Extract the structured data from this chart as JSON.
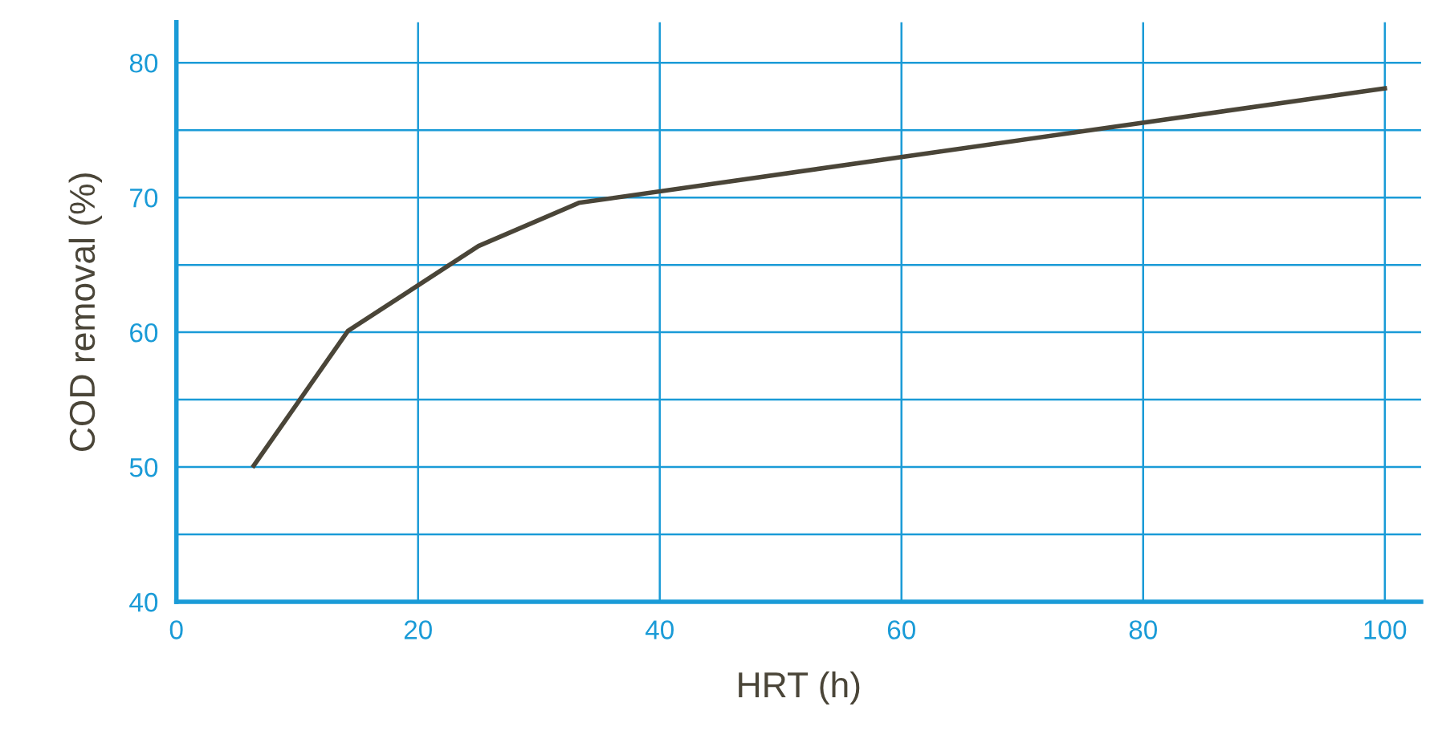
{
  "chart_data": {
    "type": "line",
    "xlabel": "HRT (h)",
    "ylabel": "COD removal (%)",
    "series": [
      {
        "color": "#4a4538",
        "x": [
          6.4,
          14.2,
          25.0,
          33.3,
          100
        ],
        "values": [
          50.1,
          60.1,
          66.4,
          69.6,
          78.1
        ]
      }
    ],
    "xlim": [
      0,
      103
    ],
    "ylim": [
      40,
      83
    ],
    "xticks": [
      0,
      20,
      40,
      60,
      80,
      100
    ],
    "yticks": [
      40,
      {
        "value": 45,
        "label": null
      },
      50,
      {
        "value": 55,
        "label": null
      },
      60,
      {
        "value": 65,
        "label": null
      },
      70,
      {
        "value": 75,
        "label": null
      },
      80
    ],
    "grid": true,
    "marker": "none",
    "line_style": "solid"
  }
}
